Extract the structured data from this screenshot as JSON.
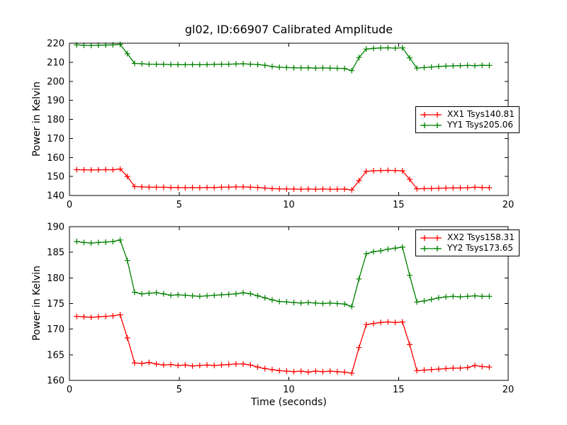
{
  "figure": {
    "title": "gl02, ID:66907 Calibrated Amplitude",
    "background": "#ffffff",
    "axis_color": "#000000"
  },
  "chart_data": [
    {
      "type": "line",
      "ylabel": "Power in Kelvin",
      "xlabel": "",
      "xlim": [
        0,
        20
      ],
      "ylim": [
        140,
        220
      ],
      "xticks": [
        0,
        5,
        10,
        15,
        20
      ],
      "yticks": [
        140,
        150,
        160,
        170,
        180,
        190,
        200,
        210,
        220
      ],
      "grid": false,
      "legend_position": "center-right",
      "x": [
        0.33,
        0.66,
        0.99,
        1.32,
        1.65,
        1.98,
        2.31,
        2.64,
        2.97,
        3.3,
        3.63,
        3.96,
        4.29,
        4.62,
        4.95,
        5.28,
        5.61,
        5.94,
        6.27,
        6.6,
        6.93,
        7.26,
        7.59,
        7.92,
        8.25,
        8.58,
        8.91,
        9.24,
        9.57,
        9.9,
        10.23,
        10.56,
        10.89,
        11.22,
        11.55,
        11.88,
        12.21,
        12.54,
        12.87,
        13.2,
        13.53,
        13.86,
        14.19,
        14.52,
        14.85,
        15.18,
        15.51,
        15.84,
        16.17,
        16.5,
        16.83,
        17.16,
        17.49,
        17.82,
        18.15,
        18.48,
        18.81,
        19.14
      ],
      "series": [
        {
          "name": "XX1 Tsys140.81",
          "color": "#ff0000",
          "marker": "+",
          "values": [
            153.6,
            153.5,
            153.4,
            153.5,
            153.6,
            153.5,
            153.9,
            150.0,
            144.7,
            144.5,
            144.4,
            144.3,
            144.3,
            144.2,
            144.2,
            144.1,
            144.2,
            144.1,
            144.2,
            144.2,
            144.3,
            144.4,
            144.5,
            144.5,
            144.4,
            144.2,
            143.9,
            143.6,
            143.5,
            143.4,
            143.4,
            143.3,
            143.4,
            143.3,
            143.4,
            143.3,
            143.3,
            143.4,
            142.9,
            147.8,
            152.7,
            153.0,
            153.1,
            153.2,
            153.1,
            153.0,
            148.5,
            143.5,
            143.6,
            143.7,
            143.8,
            143.9,
            144.0,
            144.0,
            144.1,
            144.3,
            144.2,
            144.1
          ]
        },
        {
          "name": "YY1 Tsys205.06",
          "color": "#008000",
          "marker": "+",
          "values": [
            219.1,
            218.9,
            218.8,
            218.9,
            219.0,
            219.1,
            219.4,
            214.5,
            209.4,
            209.2,
            209.0,
            209.0,
            208.9,
            208.8,
            208.8,
            208.7,
            208.8,
            208.7,
            208.8,
            208.9,
            209.0,
            209.0,
            209.1,
            209.2,
            209.0,
            208.8,
            208.4,
            207.8,
            207.4,
            207.2,
            207.1,
            207.0,
            207.1,
            206.9,
            207.0,
            206.9,
            206.8,
            206.7,
            205.6,
            212.5,
            216.9,
            217.3,
            217.5,
            217.6,
            217.4,
            217.6,
            212.3,
            206.9,
            207.2,
            207.5,
            207.8,
            208.0,
            208.1,
            208.2,
            208.3,
            208.2,
            208.4,
            208.3
          ]
        }
      ]
    },
    {
      "type": "line",
      "ylabel": "Power in Kelvin",
      "xlabel": "Time (seconds)",
      "xlim": [
        0,
        20
      ],
      "ylim": [
        160,
        190
      ],
      "xticks": [
        0,
        5,
        10,
        15,
        20
      ],
      "yticks": [
        160,
        165,
        170,
        175,
        180,
        185,
        190
      ],
      "grid": false,
      "legend_position": "top-right",
      "x": [
        0.33,
        0.66,
        0.99,
        1.32,
        1.65,
        1.98,
        2.31,
        2.64,
        2.97,
        3.3,
        3.63,
        3.96,
        4.29,
        4.62,
        4.95,
        5.28,
        5.61,
        5.94,
        6.27,
        6.6,
        6.93,
        7.26,
        7.59,
        7.92,
        8.25,
        8.58,
        8.91,
        9.24,
        9.57,
        9.9,
        10.23,
        10.56,
        10.89,
        11.22,
        11.55,
        11.88,
        12.21,
        12.54,
        12.87,
        13.2,
        13.53,
        13.86,
        14.19,
        14.52,
        14.85,
        15.18,
        15.51,
        15.84,
        16.17,
        16.5,
        16.83,
        17.16,
        17.49,
        17.82,
        18.15,
        18.48,
        18.81,
        19.14
      ],
      "series": [
        {
          "name": "XX2 Tsys158.31",
          "color": "#ff0000",
          "marker": "+",
          "values": [
            172.5,
            172.4,
            172.3,
            172.4,
            172.5,
            172.6,
            172.8,
            168.3,
            163.4,
            163.3,
            163.5,
            163.2,
            163.0,
            163.1,
            162.9,
            163.0,
            162.8,
            162.9,
            163.0,
            162.9,
            163.0,
            163.1,
            163.2,
            163.2,
            163.0,
            162.6,
            162.3,
            162.1,
            161.9,
            161.8,
            161.7,
            161.8,
            161.6,
            161.8,
            161.7,
            161.8,
            161.7,
            161.6,
            161.4,
            166.4,
            170.9,
            171.1,
            171.3,
            171.4,
            171.3,
            171.4,
            167.0,
            161.9,
            162.0,
            162.1,
            162.2,
            162.3,
            162.4,
            162.4,
            162.5,
            162.9,
            162.7,
            162.6
          ]
        },
        {
          "name": "YY2 Tsys173.65",
          "color": "#008000",
          "marker": "+",
          "values": [
            187.1,
            186.9,
            186.8,
            186.9,
            187.0,
            187.1,
            187.4,
            183.4,
            177.2,
            176.9,
            177.0,
            177.1,
            176.9,
            176.6,
            176.7,
            176.6,
            176.5,
            176.4,
            176.5,
            176.6,
            176.7,
            176.8,
            176.9,
            177.1,
            176.9,
            176.5,
            176.1,
            175.7,
            175.4,
            175.3,
            175.2,
            175.1,
            175.2,
            175.1,
            175.0,
            175.1,
            175.0,
            174.9,
            174.4,
            179.8,
            184.7,
            185.1,
            185.3,
            185.6,
            185.8,
            186.0,
            180.5,
            175.3,
            175.5,
            175.8,
            176.1,
            176.3,
            176.4,
            176.3,
            176.4,
            176.5,
            176.4,
            176.4
          ]
        }
      ]
    }
  ]
}
